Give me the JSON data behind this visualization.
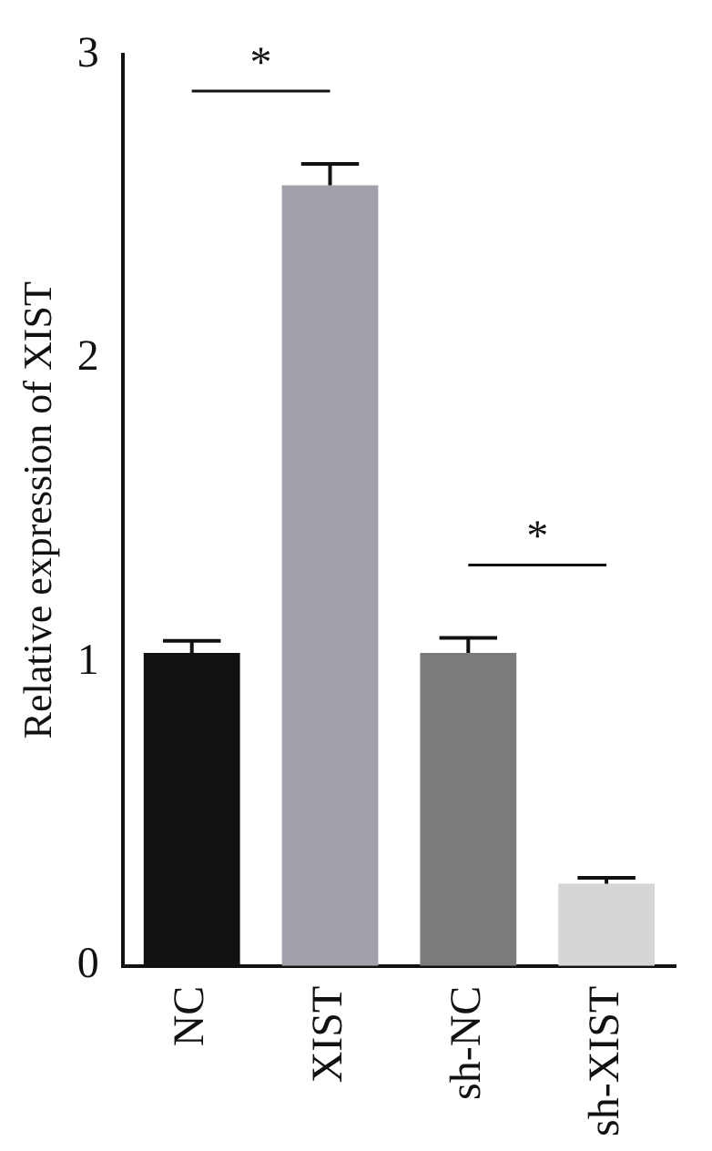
{
  "chart_data": {
    "type": "bar",
    "ylabel": "Relative expression of XIST",
    "categories": [
      "NC",
      "XIST",
      "sh-NC",
      "sh-XIST"
    ],
    "values": [
      1.03,
      2.57,
      1.03,
      0.27
    ],
    "errors": [
      0.04,
      0.07,
      0.05,
      0.02
    ],
    "colors": [
      "#111111",
      "#a1a1a9",
      "#7b7b7b",
      "#d6d6d6"
    ],
    "ylim": [
      0,
      3
    ],
    "yticks": [
      0,
      1,
      2,
      3
    ],
    "grid": false,
    "legend": false,
    "annotations": [
      "*",
      "*"
    ]
  }
}
